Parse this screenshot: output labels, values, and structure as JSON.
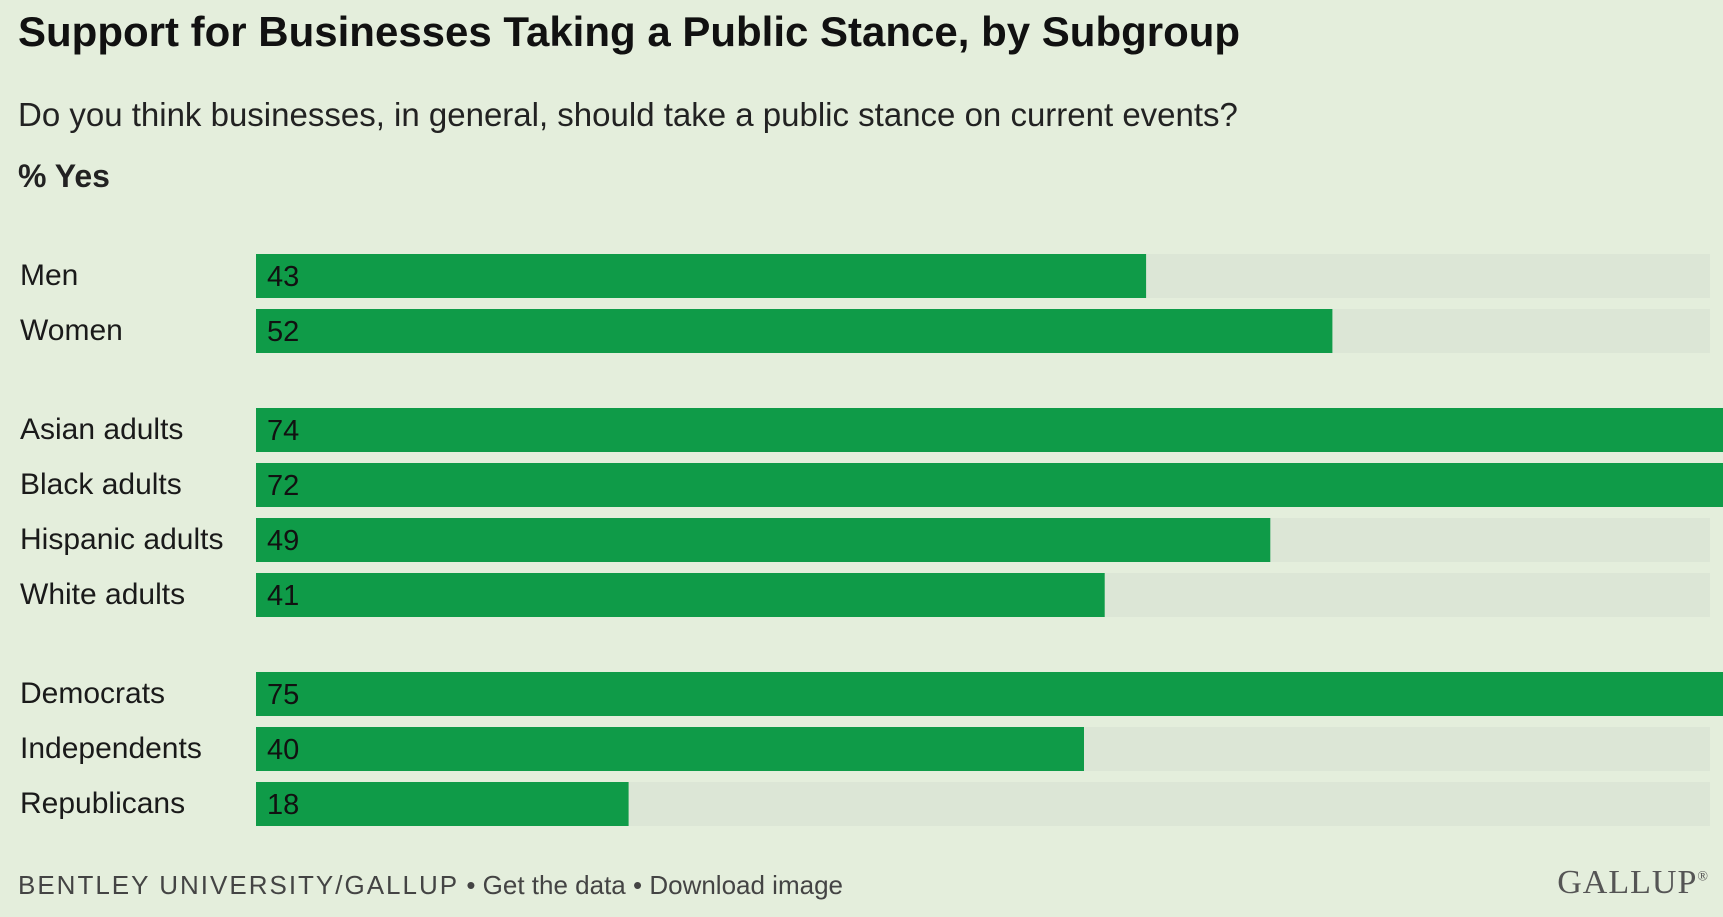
{
  "header": {
    "title": "Support for Businesses Taking a Public Stance, by Subgroup",
    "subtitle": "Do you think businesses, in general, should take a public stance on current events?",
    "unit": "% Yes"
  },
  "footer": {
    "source": "BENTLEY UNIVERSITY/GALLUP",
    "sep1": " • ",
    "get_data": "Get the data",
    "sep2": " • ",
    "download": "Download image",
    "logo": "GALLUP",
    "logo_mark": "®"
  },
  "colors": {
    "bar": "#0f9b48",
    "track": "#dce6d6",
    "background": "#e4eedc",
    "label": "#1a1a1a"
  },
  "chart_data": {
    "type": "bar",
    "orientation": "horizontal",
    "xlim": [
      0,
      80
    ],
    "grid": false,
    "groups": [
      {
        "categories": [
          "Men",
          "Women"
        ],
        "values": [
          43,
          52
        ]
      },
      {
        "categories": [
          "Asian adults",
          "Black adults",
          "Hispanic adults",
          "White adults"
        ],
        "values": [
          74,
          72,
          49,
          41
        ]
      },
      {
        "categories": [
          "Democrats",
          "Independents",
          "Republicans"
        ],
        "values": [
          75,
          40,
          18
        ]
      }
    ]
  }
}
